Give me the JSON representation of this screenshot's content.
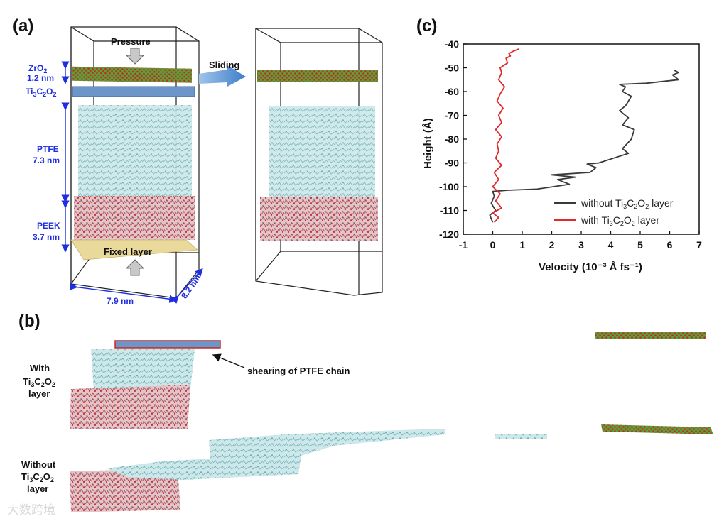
{
  "panels": {
    "a": "(a)",
    "b": "(b)",
    "c": "(c)"
  },
  "panel_a": {
    "pressure": "Pressure",
    "sliding": "Sliding",
    "zro2": {
      "base": "ZrO",
      "sub": "2",
      "thickness": "1.2 nm"
    },
    "ti3c2o2": {
      "p1": "Ti",
      "s1": "3",
      "p2": "C",
      "s2": "2",
      "p3": "O",
      "s3": "2"
    },
    "ptfe": {
      "name": "PTFE",
      "thickness": "7.3 nm"
    },
    "peek": {
      "name": "PEEK",
      "thickness": "3.7 nm"
    },
    "fixed_layer": "Fixed layer",
    "dim_x": "7.9 nm",
    "dim_y": "8.2 nm"
  },
  "panel_b": {
    "annotation": "shearing of PTFE chain",
    "with_label": {
      "l1": "With",
      "l2p1": "Ti",
      "l2s1": "3",
      "l2p2": "C",
      "l2s2": "2",
      "l2p3": "O",
      "l2s3": "2",
      "l3": "layer"
    },
    "without_label": {
      "l1": "Without",
      "l2p1": "Ti",
      "l2s1": "3",
      "l2p2": "C",
      "l2s2": "2",
      "l2p3": "O",
      "l2s3": "2",
      "l3": "layer"
    }
  },
  "chart_data": {
    "type": "line",
    "title": "",
    "xlabel": "Velocity (10⁻³ Å fs⁻¹)",
    "ylabel": "Height (Å)",
    "xlim": [
      -1,
      7
    ],
    "ylim": [
      -120,
      -40
    ],
    "xticks": [
      -1,
      0,
      1,
      2,
      3,
      4,
      5,
      6,
      7
    ],
    "yticks": [
      -40,
      -50,
      -60,
      -70,
      -80,
      -90,
      -100,
      -110,
      -120
    ],
    "series": [
      {
        "name": "without Ti₃C₂O₂ layer",
        "color": "#3a3a3a",
        "x": [
          0.0,
          -0.1,
          0.1,
          -0.05,
          0.05,
          0.0,
          0.5,
          1.5,
          2.6,
          2.2,
          2.8,
          2.0,
          3.3,
          3.5,
          3.2,
          3.6,
          4.1,
          4.6,
          4.4,
          4.7,
          4.8,
          4.4,
          4.6,
          4.3,
          4.5,
          4.7,
          4.4,
          4.5,
          4.3,
          5.2,
          6.3,
          6.1,
          6.3,
          6.15
        ],
        "y": [
          -115,
          -112,
          -110,
          -107,
          -104,
          -102,
          -101.5,
          -101,
          -99,
          -97,
          -96,
          -95,
          -94,
          -92,
          -90.5,
          -90,
          -88,
          -86,
          -84,
          -80,
          -76,
          -74,
          -71,
          -68,
          -66,
          -62,
          -60,
          -58,
          -57,
          -56.5,
          -55,
          -53,
          -52,
          -51
        ]
      },
      {
        "name": "with Ti₃C₂O₂ layer",
        "color": "#e02a2a",
        "x": [
          0.05,
          0.2,
          0.0,
          0.3,
          0.1,
          0.25,
          0.0,
          0.2,
          0.05,
          0.3,
          0.1,
          0.2,
          0.15,
          0.3,
          0.1,
          0.3,
          0.2,
          0.35,
          0.15,
          0.25,
          0.4,
          0.2,
          0.3,
          0.25,
          0.5,
          0.45,
          0.6,
          0.55,
          0.7,
          0.9
        ],
        "y": [
          -115,
          -113,
          -111,
          -109,
          -106,
          -103,
          -100,
          -97,
          -94,
          -91,
          -88,
          -85,
          -82,
          -79,
          -76,
          -73,
          -70,
          -67,
          -64,
          -61,
          -58,
          -55,
          -52,
          -50,
          -48,
          -46,
          -45,
          -44,
          -43,
          -42
        ]
      }
    ],
    "legend": {
      "position": "bottom-right",
      "entries": [
        {
          "p1": "without Ti",
          "s1": "3",
          "p2": "C",
          "s2": "2",
          "p3": "O",
          "s3": "2",
          "p4": " layer"
        },
        {
          "p1": "with Ti",
          "s1": "3",
          "p2": "C",
          "s2": "2",
          "p3": "O",
          "s3": "2",
          "p4": " layer"
        }
      ]
    }
  },
  "watermark": "大数跨境",
  "colors": {
    "blue": "#1f2ee0",
    "ptfe": "#8ecbcf",
    "peek": "#c0606a",
    "zro2_green": "#4a9a2a",
    "zro2_red": "#c8281e",
    "mxene": "#6c96c9",
    "fixed": "#e9d99a"
  }
}
